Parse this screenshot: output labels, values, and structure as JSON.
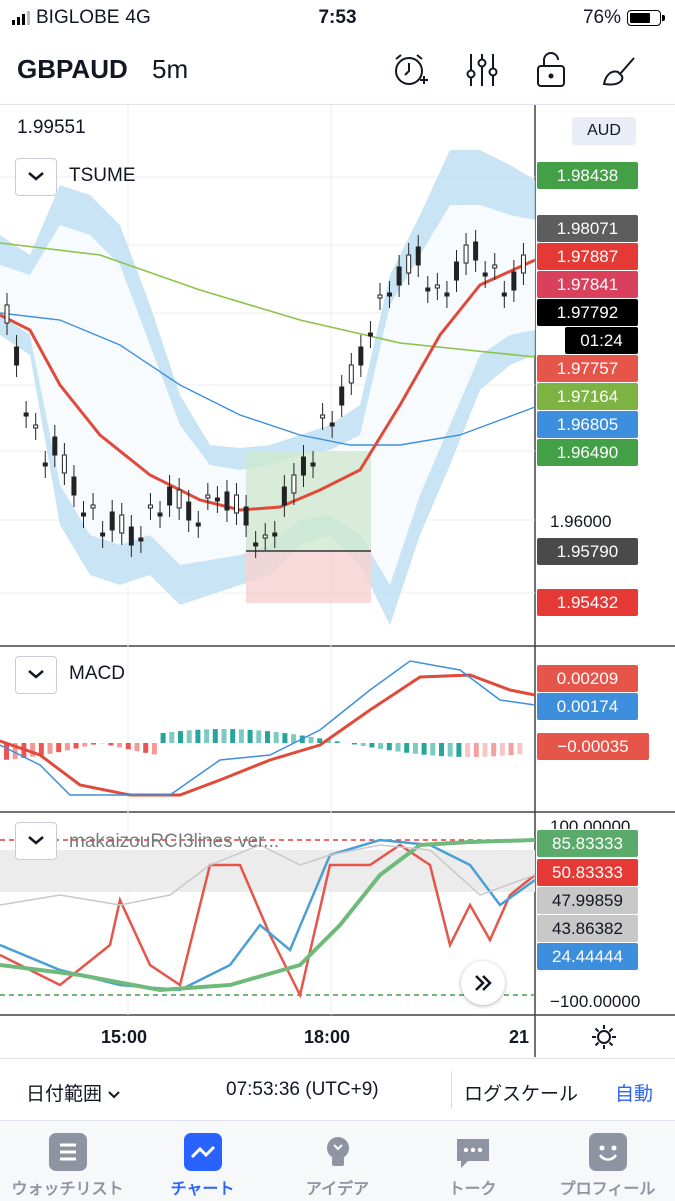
{
  "status_bar": {
    "carrier": "BIGLOBE",
    "network": "4G",
    "time": "7:53",
    "battery": "76%",
    "battery_level": 0.76
  },
  "header": {
    "symbol": "GBPAUD",
    "timeframe": "5m",
    "icons": [
      "alarm-add-icon",
      "indicators-icon",
      "unlock-icon",
      "drawing-tools-icon"
    ]
  },
  "chart": {
    "ohlc_top_value": "1.99551",
    "currency": "AUD",
    "main_indicator": "TSUME",
    "price_tags": [
      {
        "value": "1.98438",
        "color": "#43a047"
      },
      {
        "value": "1.98071",
        "color": "#5d5d5d"
      },
      {
        "value": "1.97887",
        "color": "#e53935"
      },
      {
        "value": "1.97841",
        "color": "#d9405c"
      },
      {
        "value": "1.97792",
        "color": "#000000"
      },
      {
        "value": "01:24",
        "color": "#000000"
      },
      {
        "value": "1.97757",
        "color": "#e5554a"
      },
      {
        "value": "1.97164",
        "color": "#7cb342"
      },
      {
        "value": "1.96805",
        "color": "#3d8fde"
      },
      {
        "value": "1.96490",
        "color": "#43a047"
      },
      {
        "value": "1.95790",
        "color": "#4a4a4a"
      },
      {
        "value": "1.95432",
        "color": "#e53935"
      }
    ],
    "price_labels": [
      "1.96000"
    ],
    "macd": {
      "name": "MACD",
      "tags": [
        {
          "value": "0.00209",
          "color": "#e5554a"
        },
        {
          "value": "0.00174",
          "color": "#3d8fde"
        },
        {
          "value": "−0.00035",
          "color": "#e5554a"
        }
      ]
    },
    "rci": {
      "name": "makaizouRCI3lines ver...",
      "top_partial": "100.00000",
      "tags": [
        {
          "value": "85.83333",
          "color": "#5aaa6a",
          "text_color": "#ffffff"
        },
        {
          "value": "50.83333",
          "color": "#e53935",
          "text_color": "#ffffff"
        },
        {
          "value": "47.99859",
          "color": "#c8c8c8",
          "text_color": "#131722"
        },
        {
          "value": "43.86382",
          "color": "#c8c8c8",
          "text_color": "#131722"
        },
        {
          "value": "24.44444",
          "color": "#3d8fde",
          "text_color": "#ffffff"
        }
      ],
      "bottom_label": "−100.00000"
    },
    "time_axis": [
      "15:00",
      "18:00",
      "21"
    ]
  },
  "range_bar": {
    "date_range": "日付範囲",
    "clock": "07:53:36 (UTC+9)",
    "log_scale": "ログスケール",
    "auto": "自動"
  },
  "tabs": [
    {
      "label": "ウォッチリスト",
      "icon": "watchlist-icon",
      "active": false
    },
    {
      "label": "チャート",
      "icon": "chart-icon",
      "active": true
    },
    {
      "label": "アイデア",
      "icon": "ideas-bulb-icon",
      "active": false
    },
    {
      "label": "トーク",
      "icon": "chat-bubble-icon",
      "active": false
    },
    {
      "label": "プロフィール",
      "icon": "profile-smiley-icon",
      "active": false
    }
  ],
  "colors": {
    "accent": "#2962ff",
    "bull": "#26a69a",
    "bear": "#ef5350",
    "band": "#bfdff3"
  }
}
